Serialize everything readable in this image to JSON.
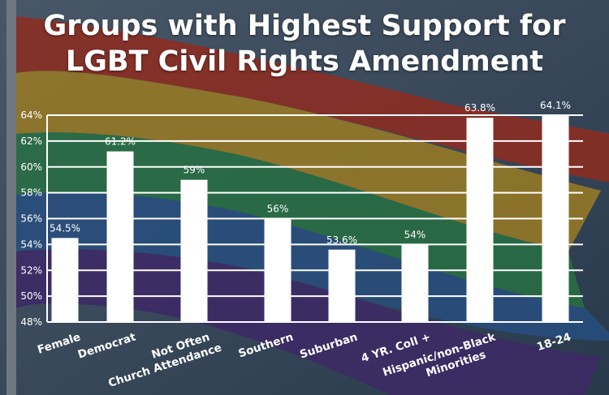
{
  "chart_data": {
    "type": "bar",
    "title": "Groups with Highest Support for LGBT Civil Rights Amendment",
    "title_lines": [
      "Groups with Highest Support for",
      "LGBT Civil Rights Amendment"
    ],
    "categories": [
      "Female",
      "Democrat",
      "Not Often Church Attendance",
      "Southern",
      "Suburban",
      "4 YR. Coll +",
      "Hispanic/non-Black Minorities",
      "18-24"
    ],
    "category_lines": [
      [
        "Female"
      ],
      [
        "Democrat"
      ],
      [
        "Not Often",
        "Church Attendance"
      ],
      [
        "Southern"
      ],
      [
        "Suburban"
      ],
      [
        "4 YR. Coll +"
      ],
      [
        "Hispanic/non-Black",
        "Minorities"
      ],
      [
        "18-24"
      ]
    ],
    "values": [
      54.5,
      61.2,
      59,
      56,
      53.6,
      54,
      63.8,
      64.1
    ],
    "data_labels": [
      "54.5%",
      "61.2%",
      "59%",
      "56%",
      "53.6%",
      "54%",
      "63.8%",
      "64.1%"
    ],
    "ylim": [
      48,
      64
    ],
    "yticks": [
      48,
      50,
      52,
      54,
      56,
      58,
      60,
      62,
      64
    ],
    "ytick_labels": [
      "48%",
      "50%",
      "52%",
      "54%",
      "56%",
      "58%",
      "60%",
      "62%",
      "64%"
    ],
    "xlabel": "",
    "ylabel": "",
    "grid": true,
    "bar_color": "#ffffff"
  }
}
